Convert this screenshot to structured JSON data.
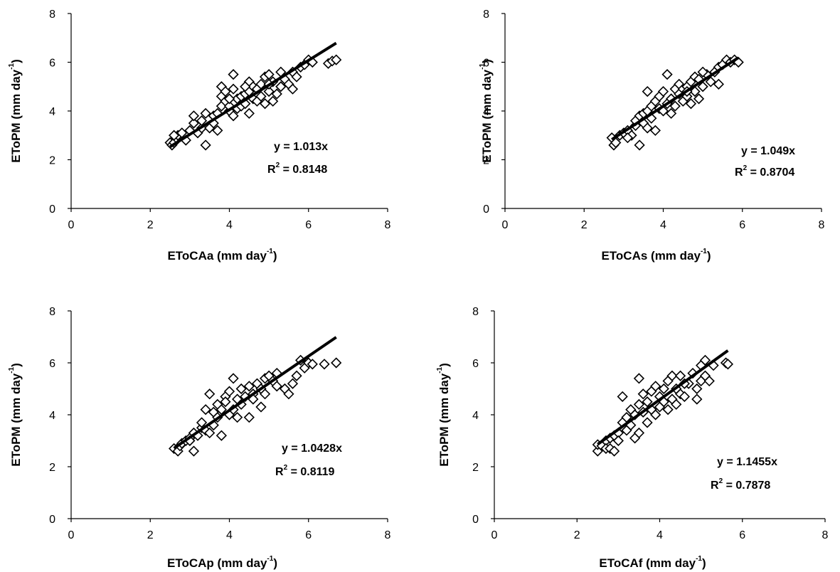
{
  "chart_data": [
    {
      "type": "scatter",
      "xlabel": "EToCAa (mm day",
      "ylabel": "EToPM (mm day",
      "unit_exp": "-1",
      "xlim": [
        0,
        8
      ],
      "ylim": [
        0,
        8
      ],
      "xticks": [
        "0",
        "2",
        "4",
        "6",
        "8"
      ],
      "yticks": [
        "0",
        "2",
        "4",
        "6",
        "8"
      ],
      "equation": "y = 1.013x",
      "r2_label": "R",
      "r2_exp": "2",
      "r2_value": " = 0.8148",
      "fit": {
        "slope": 1.013,
        "x_range": [
          2.5,
          6.7
        ]
      },
      "points": [
        [
          2.5,
          2.7
        ],
        [
          2.55,
          2.6
        ],
        [
          2.6,
          2.7
        ],
        [
          2.65,
          2.9
        ],
        [
          2.7,
          3.0
        ],
        [
          2.6,
          3.0
        ],
        [
          2.8,
          3.1
        ],
        [
          2.9,
          2.8
        ],
        [
          3.0,
          3.2
        ],
        [
          3.1,
          3.5
        ],
        [
          3.1,
          3.8
        ],
        [
          3.2,
          3.1
        ],
        [
          3.3,
          3.3
        ],
        [
          3.3,
          3.6
        ],
        [
          3.4,
          2.6
        ],
        [
          3.4,
          3.9
        ],
        [
          3.5,
          3.3
        ],
        [
          3.6,
          3.5
        ],
        [
          3.6,
          3.8
        ],
        [
          3.7,
          3.9
        ],
        [
          3.8,
          4.2
        ],
        [
          3.8,
          4.6
        ],
        [
          3.8,
          5.0
        ],
        [
          3.9,
          4.4
        ],
        [
          3.9,
          4.8
        ],
        [
          4.0,
          4.0
        ],
        [
          4.0,
          4.2
        ],
        [
          4.1,
          3.8
        ],
        [
          4.1,
          4.9
        ],
        [
          4.1,
          5.5
        ],
        [
          4.2,
          4.1
        ],
        [
          4.2,
          4.5
        ],
        [
          4.3,
          4.2
        ],
        [
          4.3,
          4.6
        ],
        [
          4.4,
          4.7
        ],
        [
          4.4,
          4.3
        ],
        [
          4.5,
          3.9
        ],
        [
          4.5,
          4.8
        ],
        [
          4.5,
          5.2
        ],
        [
          4.6,
          4.5
        ],
        [
          4.6,
          5.0
        ],
        [
          4.7,
          4.4
        ],
        [
          4.7,
          4.9
        ],
        [
          4.8,
          4.6
        ],
        [
          4.8,
          5.1
        ],
        [
          4.9,
          4.3
        ],
        [
          4.9,
          5.4
        ],
        [
          5.0,
          4.8
        ],
        [
          5.0,
          5.5
        ],
        [
          5.1,
          4.4
        ],
        [
          5.1,
          5.2
        ],
        [
          5.2,
          4.7
        ],
        [
          5.3,
          5.6
        ],
        [
          5.3,
          5.0
        ],
        [
          5.4,
          5.3
        ],
        [
          5.5,
          5.1
        ],
        [
          5.6,
          5.6
        ],
        [
          5.6,
          4.9
        ],
        [
          5.7,
          5.4
        ],
        [
          5.8,
          5.8
        ],
        [
          5.9,
          5.9
        ],
        [
          6.0,
          6.1
        ],
        [
          6.1,
          6.0
        ],
        [
          6.5,
          5.95
        ],
        [
          6.6,
          6.05
        ],
        [
          6.7,
          6.1
        ],
        [
          3.7,
          3.2
        ],
        [
          4.0,
          4.5
        ],
        [
          4.4,
          5.0
        ],
        [
          5.0,
          5.1
        ]
      ]
    },
    {
      "type": "scatter",
      "xlabel": "EToCAs (mm day",
      "ylabel": "EToPM (mm day",
      "unit_exp": "-1",
      "xlim": [
        0,
        8
      ],
      "ylim": [
        0,
        8
      ],
      "xticks": [
        "0",
        "2",
        "4",
        "6",
        "8"
      ],
      "yticks": [
        "0",
        "2",
        "4",
        "6",
        "8"
      ],
      "equation": "y = 1.049x",
      "r2_label": "R",
      "r2_exp": "2",
      "r2_value": " = 0.8704",
      "fit": {
        "slope": 1.049,
        "x_range": [
          2.7,
          5.9
        ]
      },
      "points": [
        [
          2.7,
          2.9
        ],
        [
          2.75,
          2.6
        ],
        [
          2.8,
          2.7
        ],
        [
          2.9,
          3.0
        ],
        [
          3.0,
          3.1
        ],
        [
          3.1,
          3.2
        ],
        [
          3.2,
          3.0
        ],
        [
          3.3,
          3.4
        ],
        [
          3.3,
          3.6
        ],
        [
          3.4,
          2.6
        ],
        [
          3.4,
          3.8
        ],
        [
          3.5,
          3.5
        ],
        [
          3.5,
          3.9
        ],
        [
          3.6,
          3.3
        ],
        [
          3.6,
          4.0
        ],
        [
          3.6,
          4.8
        ],
        [
          3.7,
          3.7
        ],
        [
          3.7,
          4.2
        ],
        [
          3.8,
          4.4
        ],
        [
          3.8,
          3.2
        ],
        [
          3.9,
          4.1
        ],
        [
          3.9,
          4.6
        ],
        [
          4.0,
          4.0
        ],
        [
          4.0,
          4.8
        ],
        [
          4.1,
          4.3
        ],
        [
          4.1,
          5.5
        ],
        [
          4.2,
          4.5
        ],
        [
          4.2,
          3.9
        ],
        [
          4.3,
          4.2
        ],
        [
          4.3,
          4.9
        ],
        [
          4.4,
          4.7
        ],
        [
          4.4,
          5.1
        ],
        [
          4.5,
          4.4
        ],
        [
          4.5,
          4.9
        ],
        [
          4.6,
          4.6
        ],
        [
          4.6,
          5.0
        ],
        [
          4.7,
          4.3
        ],
        [
          4.7,
          5.2
        ],
        [
          4.8,
          4.8
        ],
        [
          4.8,
          5.4
        ],
        [
          4.9,
          4.5
        ],
        [
          4.9,
          5.3
        ],
        [
          5.0,
          5.0
        ],
        [
          5.1,
          5.5
        ],
        [
          5.2,
          5.2
        ],
        [
          5.3,
          5.6
        ],
        [
          5.4,
          5.1
        ],
        [
          5.4,
          5.8
        ],
        [
          5.5,
          5.9
        ],
        [
          5.6,
          6.1
        ],
        [
          5.7,
          6.0
        ],
        [
          5.8,
          6.1
        ],
        [
          5.9,
          6.0
        ],
        [
          3.1,
          2.9
        ],
        [
          4.6,
          4.8
        ],
        [
          5.0,
          5.6
        ]
      ]
    },
    {
      "type": "scatter",
      "xlabel": "EToCAp (mm day",
      "ylabel": "EToPM (mm day",
      "unit_exp": "-1",
      "xlim": [
        0,
        8
      ],
      "ylim": [
        0,
        8
      ],
      "xticks": [
        "0",
        "2",
        "4",
        "6",
        "8"
      ],
      "yticks": [
        "0",
        "2",
        "4",
        "6",
        "8"
      ],
      "equation": "y = 1.0428x",
      "r2_label": "R",
      "r2_exp": "2",
      "r2_value": " = 0.8119",
      "fit": {
        "slope": 1.0428,
        "x_range": [
          2.6,
          6.7
        ]
      },
      "points": [
        [
          2.6,
          2.7
        ],
        [
          2.7,
          2.6
        ],
        [
          2.75,
          2.8
        ],
        [
          2.8,
          2.9
        ],
        [
          2.9,
          3.0
        ],
        [
          3.0,
          3.1
        ],
        [
          3.1,
          2.6
        ],
        [
          3.1,
          3.3
        ],
        [
          3.2,
          3.2
        ],
        [
          3.3,
          3.5
        ],
        [
          3.3,
          3.7
        ],
        [
          3.4,
          3.4
        ],
        [
          3.4,
          4.2
        ],
        [
          3.5,
          3.3
        ],
        [
          3.5,
          4.8
        ],
        [
          3.6,
          3.6
        ],
        [
          3.6,
          4.1
        ],
        [
          3.7,
          3.9
        ],
        [
          3.7,
          4.4
        ],
        [
          3.8,
          3.2
        ],
        [
          3.8,
          4.2
        ],
        [
          3.9,
          4.7
        ],
        [
          3.9,
          4.5
        ],
        [
          4.0,
          4.0
        ],
        [
          4.0,
          4.9
        ],
        [
          4.1,
          4.2
        ],
        [
          4.1,
          5.4
        ],
        [
          4.2,
          4.6
        ],
        [
          4.2,
          3.9
        ],
        [
          4.3,
          4.4
        ],
        [
          4.3,
          5.0
        ],
        [
          4.4,
          4.7
        ],
        [
          4.5,
          3.9
        ],
        [
          4.5,
          5.1
        ],
        [
          4.6,
          4.8
        ],
        [
          4.7,
          5.2
        ],
        [
          4.8,
          4.3
        ],
        [
          4.8,
          5.0
        ],
        [
          4.9,
          4.8
        ],
        [
          4.9,
          5.4
        ],
        [
          5.0,
          5.5
        ],
        [
          5.1,
          5.3
        ],
        [
          5.2,
          5.6
        ],
        [
          5.2,
          5.1
        ],
        [
          5.4,
          5.0
        ],
        [
          5.5,
          4.8
        ],
        [
          5.6,
          5.2
        ],
        [
          5.7,
          5.5
        ],
        [
          5.8,
          6.1
        ],
        [
          5.9,
          5.8
        ],
        [
          6.0,
          6.0
        ],
        [
          6.1,
          5.95
        ],
        [
          6.4,
          5.95
        ],
        [
          6.7,
          6.0
        ],
        [
          4.6,
          4.6
        ],
        [
          3.0,
          3.0
        ]
      ]
    },
    {
      "type": "scatter",
      "xlabel": "EToCAf (mm day",
      "ylabel": "EToPM (mm day",
      "unit_exp": "-1",
      "xlim": [
        0,
        8
      ],
      "ylim": [
        0,
        8
      ],
      "xticks": [
        "0",
        "2",
        "4",
        "6",
        "8"
      ],
      "yticks": [
        "0",
        "2",
        "4",
        "6",
        "8"
      ],
      "equation": "y = 1.1455x",
      "r2_label": "R",
      "r2_exp": "2",
      "r2_value": " = 0.7878",
      "fit": {
        "slope": 1.1455,
        "x_range": [
          2.5,
          5.65
        ]
      },
      "points": [
        [
          2.5,
          2.6
        ],
        [
          2.5,
          2.85
        ],
        [
          2.6,
          2.8
        ],
        [
          2.7,
          3.0
        ],
        [
          2.7,
          2.7
        ],
        [
          2.8,
          2.7
        ],
        [
          2.8,
          3.1
        ],
        [
          2.9,
          3.2
        ],
        [
          2.9,
          2.6
        ],
        [
          3.0,
          3.3
        ],
        [
          3.0,
          3.0
        ],
        [
          3.1,
          3.7
        ],
        [
          3.1,
          4.7
        ],
        [
          3.2,
          3.4
        ],
        [
          3.2,
          3.9
        ],
        [
          3.3,
          4.2
        ],
        [
          3.3,
          3.6
        ],
        [
          3.4,
          3.1
        ],
        [
          3.4,
          4.0
        ],
        [
          3.5,
          3.3
        ],
        [
          3.5,
          4.4
        ],
        [
          3.5,
          5.4
        ],
        [
          3.6,
          4.1
        ],
        [
          3.6,
          4.8
        ],
        [
          3.7,
          3.7
        ],
        [
          3.7,
          4.5
        ],
        [
          3.8,
          4.2
        ],
        [
          3.8,
          4.9
        ],
        [
          3.9,
          4.0
        ],
        [
          3.9,
          5.1
        ],
        [
          4.0,
          4.3
        ],
        [
          4.0,
          4.7
        ],
        [
          4.1,
          4.5
        ],
        [
          4.1,
          5.0
        ],
        [
          4.2,
          4.2
        ],
        [
          4.2,
          5.3
        ],
        [
          4.3,
          4.6
        ],
        [
          4.3,
          5.5
        ],
        [
          4.4,
          4.4
        ],
        [
          4.4,
          5.0
        ],
        [
          4.5,
          4.8
        ],
        [
          4.5,
          5.5
        ],
        [
          4.6,
          4.7
        ],
        [
          4.7,
          5.2
        ],
        [
          4.8,
          5.6
        ],
        [
          4.9,
          5.0
        ],
        [
          4.9,
          4.6
        ],
        [
          5.0,
          5.3
        ],
        [
          5.0,
          5.9
        ],
        [
          5.1,
          6.1
        ],
        [
          5.1,
          5.5
        ],
        [
          5.2,
          5.3
        ],
        [
          5.3,
          5.9
        ],
        [
          5.6,
          6.0
        ],
        [
          5.65,
          5.95
        ],
        [
          4.6,
          5.2
        ]
      ]
    }
  ]
}
